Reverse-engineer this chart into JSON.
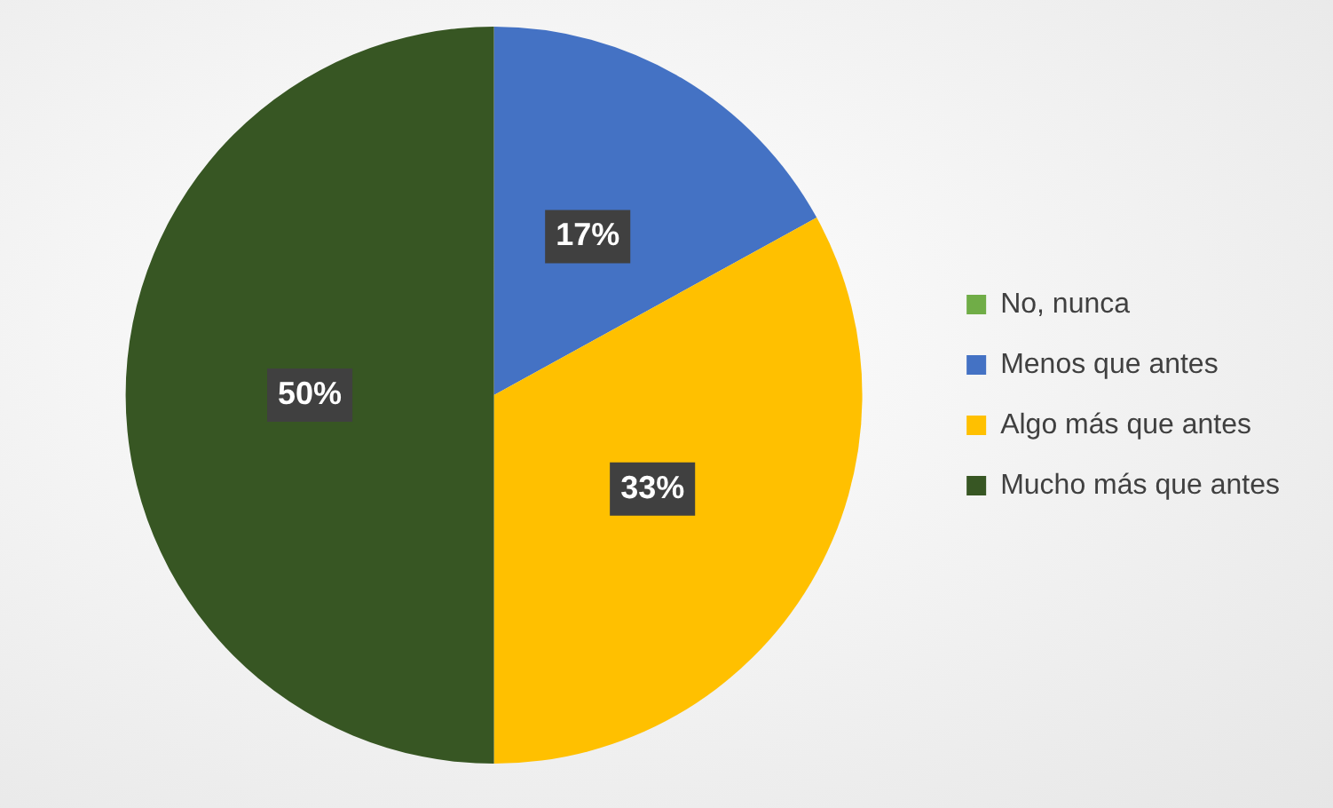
{
  "chart_data": {
    "type": "pie",
    "categories": [
      "No, nunca",
      "Menos que antes",
      "Algo más que antes",
      "Mucho más que antes"
    ],
    "values": [
      0,
      17,
      33,
      50
    ],
    "colors": [
      "#70ad47",
      "#4472c4",
      "#ffc000",
      "#375623"
    ],
    "value_labels": [
      null,
      "17%",
      "33%",
      "50%"
    ],
    "legend": "right"
  }
}
